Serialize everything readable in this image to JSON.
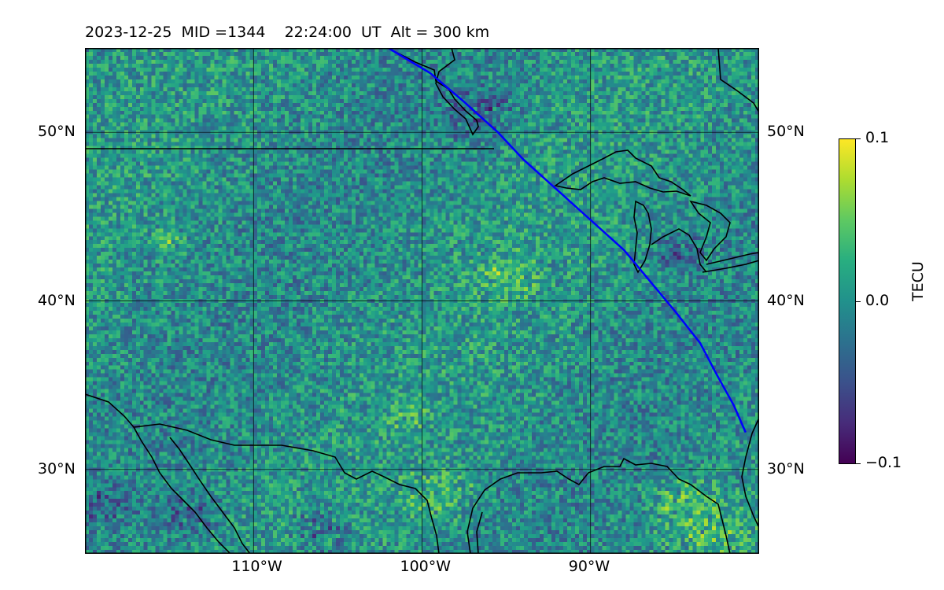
{
  "title": "2023-12-25  MID =1344    22:24:00  UT  Alt = 300 km",
  "map": {
    "type": "heatmap",
    "variable": "TECU",
    "lon_range": [
      -120,
      -80
    ],
    "lat_range": [
      25,
      55
    ],
    "grid": true,
    "colormap": "viridis",
    "path_color": "#0000ff",
    "coastline_color": "#000000",
    "lat_labels": [
      {
        "lat": 50,
        "text": "50°N"
      },
      {
        "lat": 40,
        "text": "40°N"
      },
      {
        "lat": 30,
        "text": "30°N"
      }
    ],
    "lon_labels": [
      {
        "lon": -110,
        "text": "110°W"
      },
      {
        "lon": -100,
        "text": "100°W"
      },
      {
        "lon": -90,
        "text": "90°W"
      }
    ],
    "satellite_track": [
      [
        -102,
        55
      ],
      [
        -99.5,
        53.5
      ],
      [
        -97.5,
        51.8
      ],
      [
        -95.5,
        50
      ],
      [
        -94,
        48.4
      ],
      [
        -92,
        46.6
      ],
      [
        -90,
        44.8
      ],
      [
        -88,
        43
      ],
      [
        -86.5,
        41.2
      ],
      [
        -85,
        39.4
      ],
      [
        -83.5,
        37.5
      ],
      [
        -82.5,
        35.6
      ],
      [
        -81.5,
        33.8
      ],
      [
        -80.8,
        32.2
      ]
    ]
  },
  "colorbar": {
    "label": "TECU",
    "min": -0.1,
    "max": 0.1,
    "ticks": [
      {
        "value": 0.1,
        "text": "0.1"
      },
      {
        "value": 0.0,
        "text": "0.0"
      },
      {
        "value": -0.1,
        "text": "−0.1"
      }
    ]
  }
}
